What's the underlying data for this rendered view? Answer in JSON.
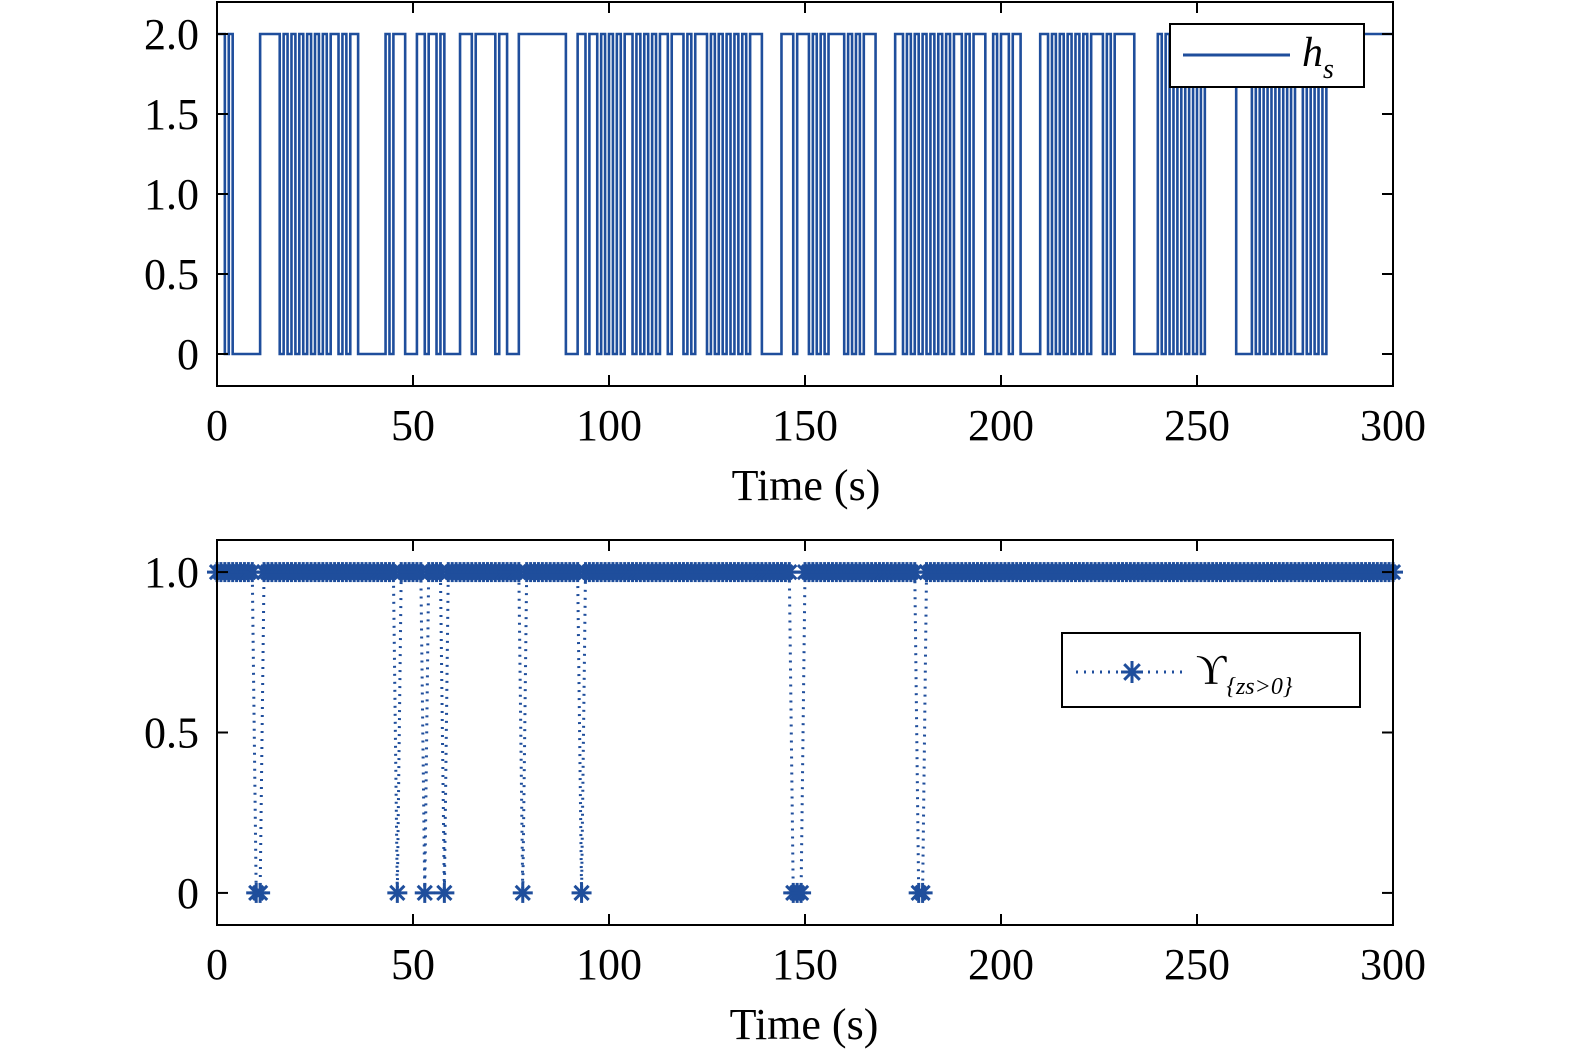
{
  "colors": {
    "series": "#1f4e9c",
    "axis": "#000000"
  },
  "chart_data": [
    {
      "type": "line",
      "step": true,
      "xlabel": "Time (s)",
      "ylabel": "",
      "xlim": [
        0,
        300
      ],
      "ylim": [
        -0.2,
        2.2
      ],
      "xticks": [
        0,
        50,
        100,
        150,
        200,
        250,
        300
      ],
      "yticks": [
        0,
        0.5,
        1.0,
        1.5,
        2.0
      ],
      "yticklabels": [
        "0",
        "0.5",
        "1.0",
        "1.5",
        "2.0"
      ],
      "legend": {
        "label": "h",
        "subscript": "s",
        "position": "top-right"
      },
      "series": [
        {
          "name": "h_s",
          "values": [
            2,
            2,
            0,
            2,
            0,
            0,
            0,
            0,
            0,
            0,
            0,
            2,
            2,
            2,
            2,
            2,
            0,
            2,
            0,
            2,
            0,
            2,
            0,
            2,
            0,
            2,
            0,
            2,
            0,
            2,
            2,
            0,
            2,
            0,
            2,
            2,
            0,
            0,
            0,
            0,
            0,
            0,
            0,
            2,
            0,
            2,
            2,
            2,
            0,
            0,
            0,
            2,
            2,
            0,
            2,
            2,
            0,
            2,
            0,
            0,
            0,
            0,
            2,
            2,
            2,
            0,
            2,
            2,
            2,
            2,
            2,
            0,
            2,
            2,
            0,
            0,
            0,
            2,
            2,
            2,
            2,
            2,
            2,
            2,
            2,
            2,
            2,
            2,
            2,
            0,
            0,
            0,
            2,
            2,
            0,
            2,
            2,
            0,
            2,
            0,
            2,
            0,
            2,
            0,
            2,
            2,
            0,
            2,
            0,
            2,
            0,
            2,
            0,
            2,
            2,
            0,
            2,
            2,
            2,
            0,
            2,
            0,
            2,
            2,
            2,
            0,
            2,
            0,
            2,
            0,
            2,
            0,
            2,
            0,
            2,
            0,
            2,
            2,
            2,
            0,
            0,
            0,
            0,
            0,
            2,
            2,
            2,
            0,
            2,
            2,
            2,
            0,
            2,
            0,
            2,
            0,
            2,
            2,
            2,
            2,
            0,
            2,
            0,
            2,
            0,
            2,
            2,
            2,
            0,
            0,
            0,
            0,
            0,
            2,
            2,
            0,
            2,
            0,
            2,
            0,
            2,
            0,
            2,
            0,
            2,
            0,
            2,
            0,
            2,
            2,
            0,
            2,
            0,
            2,
            2,
            2,
            0,
            0,
            2,
            0,
            2,
            2,
            0,
            2,
            2,
            0,
            0,
            0,
            0,
            0,
            2,
            2,
            0,
            2,
            0,
            2,
            0,
            2,
            0,
            2,
            0,
            2,
            0,
            2,
            2,
            2,
            0,
            2,
            0,
            2,
            2,
            2,
            2,
            2,
            0,
            0,
            0,
            0,
            0,
            0,
            2,
            0,
            2,
            0,
            2,
            0,
            2,
            0,
            2,
            0,
            2,
            0,
            2,
            2,
            2,
            2,
            2,
            2,
            2,
            2,
            0,
            0,
            0,
            0,
            2,
            0,
            2,
            0,
            2,
            0,
            2,
            0,
            2,
            0,
            2,
            0,
            0,
            2,
            0,
            2,
            0,
            2,
            0,
            2
          ]
        }
      ]
    },
    {
      "type": "line",
      "marker": "asterisk",
      "linestyle": "dotted",
      "xlabel": "Time (s)",
      "ylabel": "",
      "xlim": [
        0,
        300
      ],
      "ylim": [
        -0.1,
        1.1
      ],
      "xticks": [
        0,
        50,
        100,
        150,
        200,
        250,
        300
      ],
      "yticks": [
        0,
        0.5,
        1.0
      ],
      "yticklabels": [
        "0",
        "0.5",
        "1.0"
      ],
      "legend": {
        "label": "ϒ",
        "subscript": "{zs>0}",
        "position": "center-right"
      },
      "series": [
        {
          "name": "ϒ{zs>0}",
          "zero_times": [
            10,
            11,
            46,
            53,
            58,
            78,
            93,
            147,
            148,
            149,
            179,
            180
          ],
          "default_value": 1.0
        }
      ]
    }
  ]
}
